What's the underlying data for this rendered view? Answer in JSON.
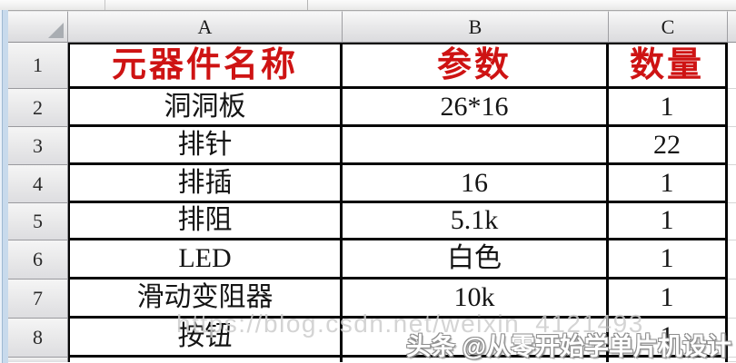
{
  "app": {
    "type": "excel-spreadsheet-screenshot"
  },
  "spreadsheet": {
    "column_headers": [
      "A",
      "B",
      "C"
    ],
    "row_numbers": [
      "1",
      "2",
      "3",
      "4",
      "5",
      "6",
      "7",
      "8"
    ],
    "header_row": {
      "name": "元器件名称",
      "param": "参数",
      "qty": "数量"
    },
    "rows": [
      {
        "name": "洞洞板",
        "param": "26*16",
        "qty": "1"
      },
      {
        "name": "排针",
        "param": "",
        "qty": "22"
      },
      {
        "name": "排插",
        "param": "16",
        "qty": "1"
      },
      {
        "name": "排阻",
        "param": "5.1k",
        "qty": "1"
      },
      {
        "name": "LED",
        "param": "白色",
        "qty": "1"
      },
      {
        "name": "滑动变阻器",
        "param": "10k",
        "qty": "1"
      },
      {
        "name": "按钮",
        "param": "",
        "qty": "1"
      }
    ]
  },
  "watermarks": {
    "url": "https://blog.csdn.net/weixin_4121493",
    "toutiao": "头条 @从零开始学单片机设计"
  },
  "colors": {
    "header_text_red": "#CE1313",
    "cell_text": "#141414",
    "table_border": "#050505",
    "header_fill": "#E6E6E8",
    "left_strip_blue": "#C8DAEC"
  }
}
